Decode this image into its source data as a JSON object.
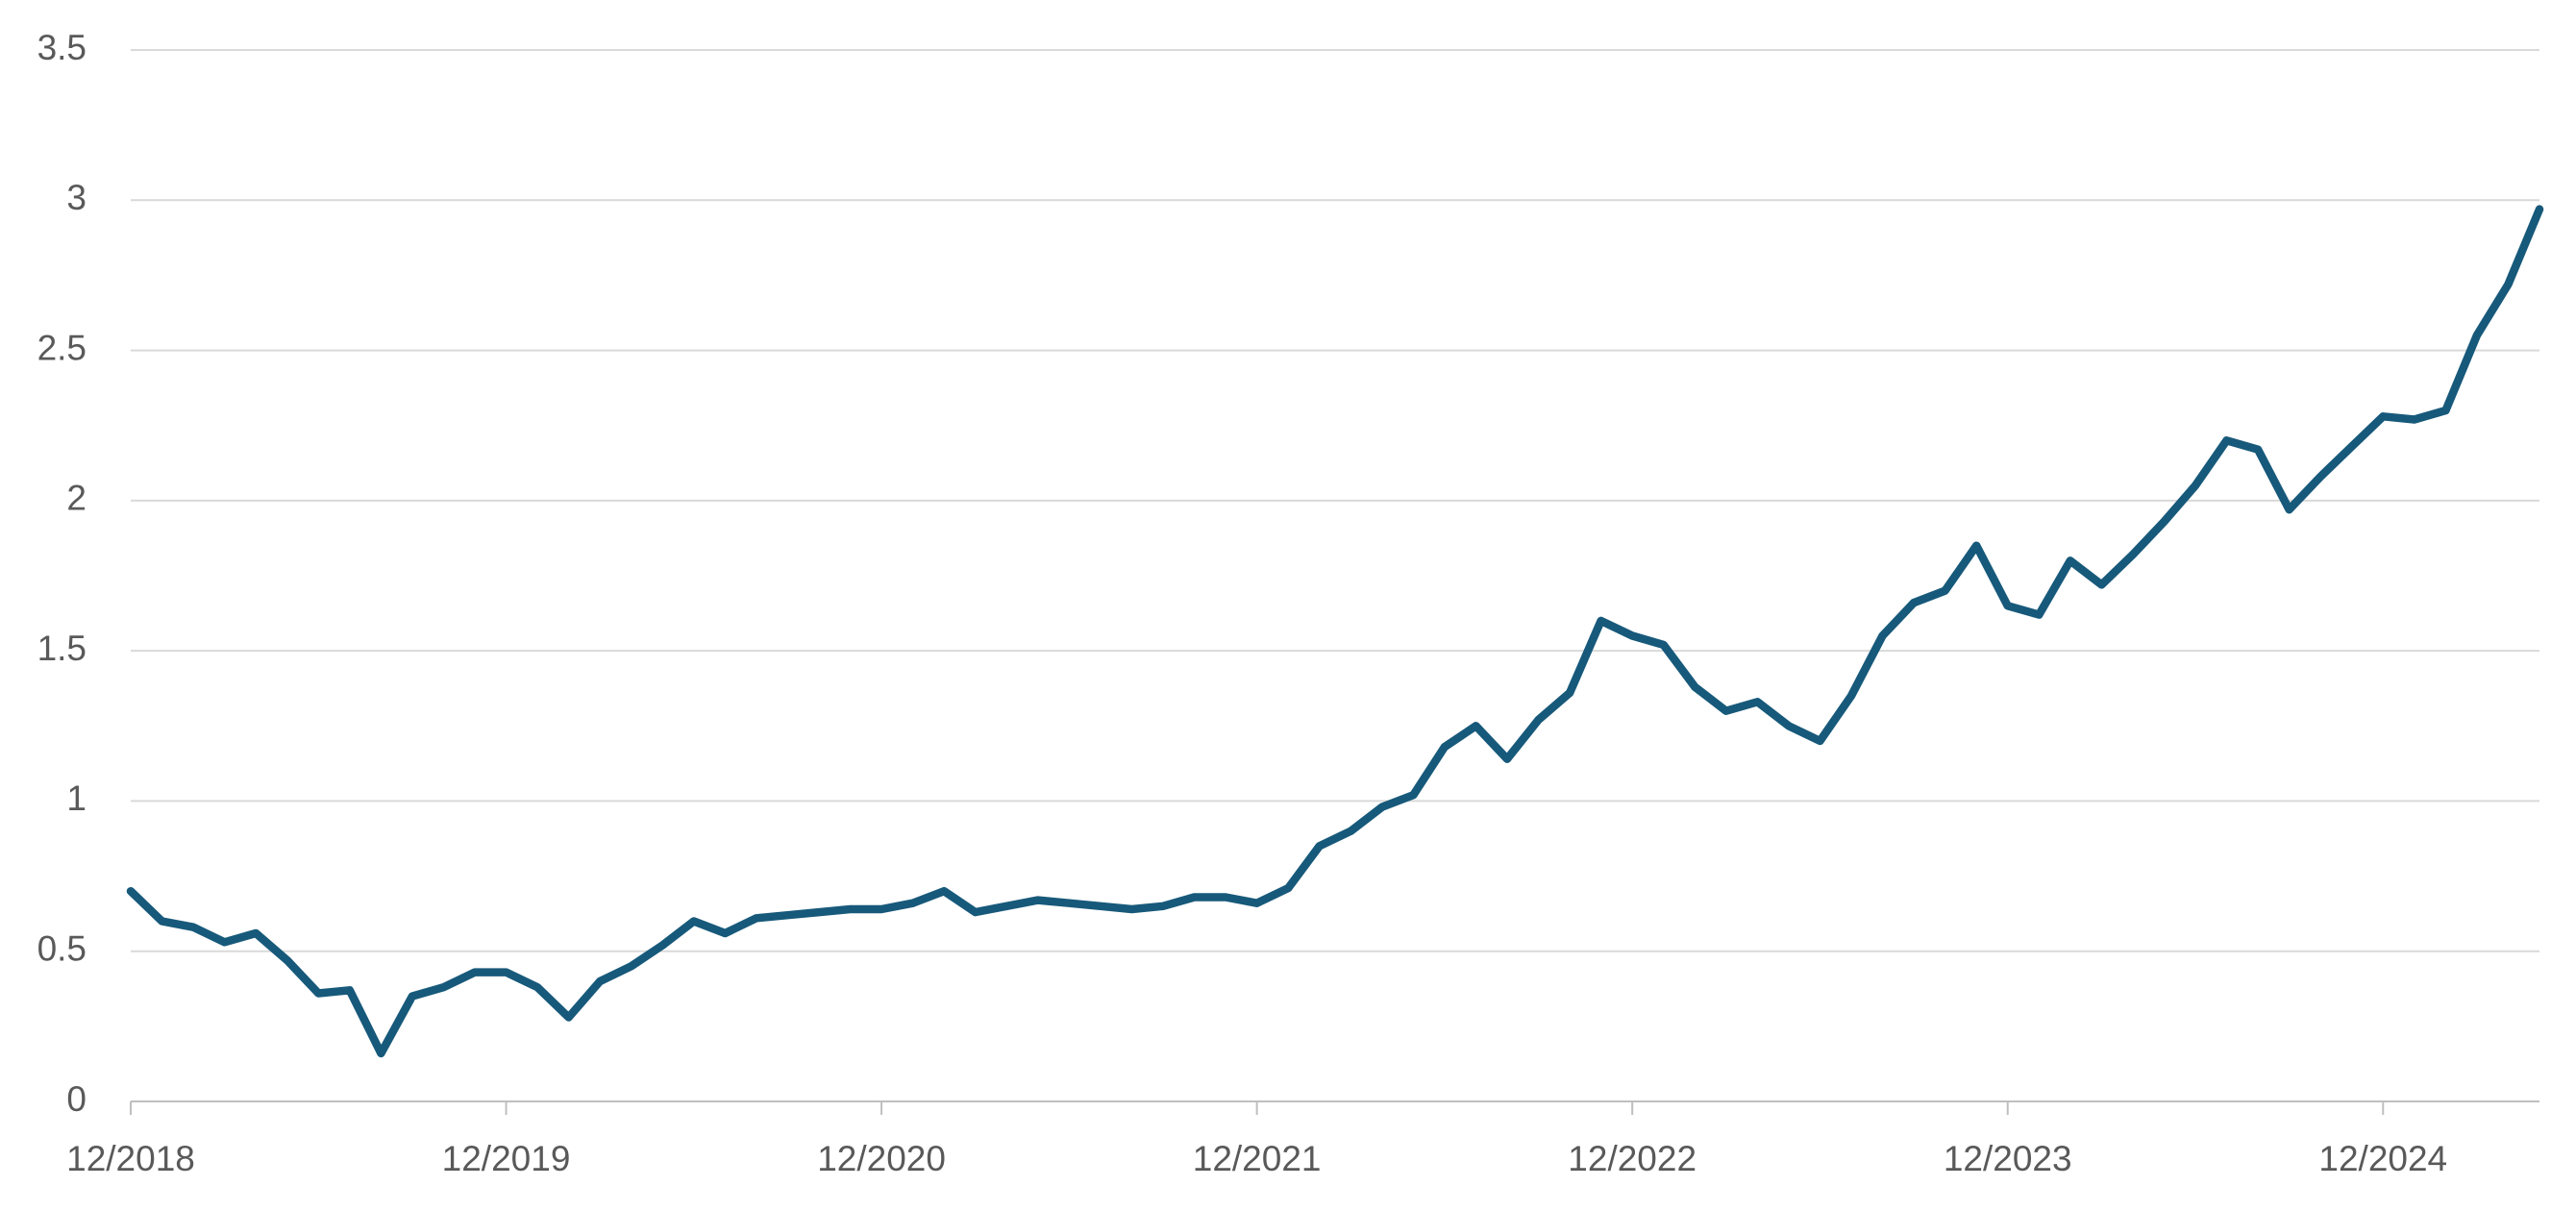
{
  "chart_data": {
    "type": "line",
    "x": [
      "12/2018",
      "01/2019",
      "02/2019",
      "03/2019",
      "04/2019",
      "05/2019",
      "06/2019",
      "07/2019",
      "08/2019",
      "09/2019",
      "10/2019",
      "11/2019",
      "12/2019",
      "01/2020",
      "02/2020",
      "03/2020",
      "04/2020",
      "05/2020",
      "06/2020",
      "07/2020",
      "08/2020",
      "09/2020",
      "10/2020",
      "11/2020",
      "12/2020",
      "01/2021",
      "02/2021",
      "03/2021",
      "04/2021",
      "05/2021",
      "06/2021",
      "07/2021",
      "08/2021",
      "09/2021",
      "10/2021",
      "11/2021",
      "12/2021",
      "01/2022",
      "02/2022",
      "03/2022",
      "04/2022",
      "05/2022",
      "06/2022",
      "07/2022",
      "08/2022",
      "09/2022",
      "10/2022",
      "11/2022",
      "12/2022",
      "01/2023",
      "02/2023",
      "03/2023",
      "04/2023",
      "05/2023",
      "06/2023",
      "07/2023",
      "08/2023",
      "09/2023",
      "10/2023",
      "11/2023",
      "12/2023",
      "01/2024",
      "02/2024",
      "03/2024",
      "04/2024",
      "05/2024",
      "06/2024",
      "07/2024",
      "08/2024",
      "09/2024",
      "10/2024",
      "11/2024",
      "12/2024",
      "01/2025",
      "02/2025",
      "03/2025",
      "04/2025",
      "05/2025"
    ],
    "series": [
      {
        "color": "#17597a",
        "values": [
          0.7,
          0.6,
          0.58,
          0.53,
          0.56,
          0.47,
          0.36,
          0.37,
          0.16,
          0.35,
          0.38,
          0.43,
          0.43,
          0.38,
          0.28,
          0.4,
          0.45,
          0.52,
          0.6,
          0.56,
          0.61,
          0.62,
          0.63,
          0.64,
          0.64,
          0.66,
          0.7,
          0.63,
          0.65,
          0.67,
          0.66,
          0.65,
          0.64,
          0.65,
          0.68,
          0.68,
          0.66,
          0.71,
          0.85,
          0.9,
          0.98,
          1.02,
          1.18,
          1.25,
          1.14,
          1.27,
          1.36,
          1.6,
          1.55,
          1.52,
          1.38,
          1.3,
          1.33,
          1.25,
          1.2,
          1.35,
          1.55,
          1.66,
          1.7,
          1.85,
          1.65,
          1.62,
          1.8,
          1.72,
          1.82,
          1.93,
          2.05,
          2.2,
          2.17,
          1.97,
          2.08,
          2.18,
          2.28,
          2.27,
          2.3,
          2.55,
          2.72,
          2.97
        ]
      }
    ],
    "xticks": [
      "12/2018",
      "12/2019",
      "12/2020",
      "12/2021",
      "12/2022",
      "12/2023",
      "12/2024"
    ],
    "ylim": [
      0,
      3.5
    ],
    "yticks": [
      0,
      0.5,
      1,
      1.5,
      2,
      2.5,
      3,
      3.5
    ],
    "grid": true
  }
}
